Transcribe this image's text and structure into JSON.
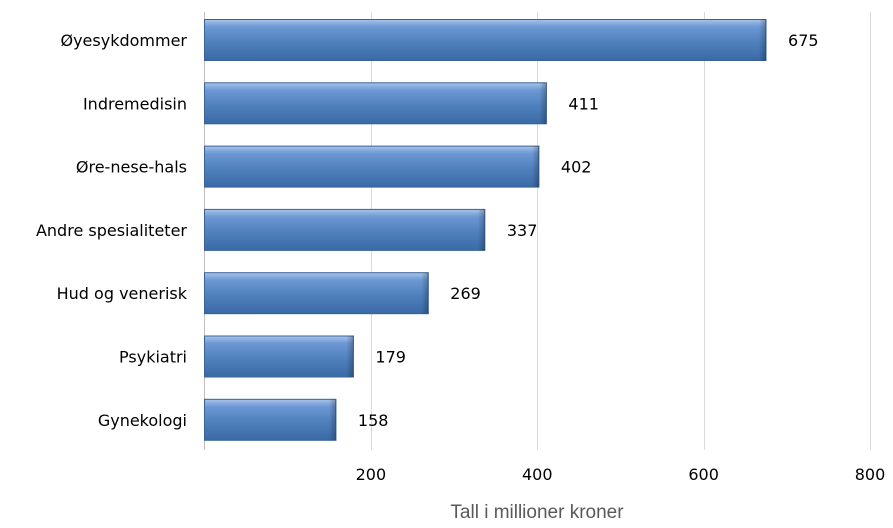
{
  "chart_data": {
    "type": "bar",
    "orientation": "horizontal",
    "categories": [
      "Øyesykdommer",
      "Indremedisin",
      "Øre-nese-hals",
      "Andre spesialiteter",
      "Hud og venerisk",
      "Psykiatri",
      "Gynekologi"
    ],
    "values": [
      675,
      411,
      402,
      337,
      269,
      179,
      158
    ],
    "data_labels": [
      "675",
      "411",
      "402",
      "337",
      "269",
      "179",
      "158"
    ],
    "xlabel": "Tall i millioner kroner",
    "xlim": [
      0,
      800
    ],
    "xticks": [
      200,
      400,
      600,
      800
    ],
    "xtick_labels": [
      "200",
      "400",
      "600",
      "800"
    ],
    "grid": "vertical",
    "legend": "none",
    "bar_color": "#4f81bd"
  }
}
